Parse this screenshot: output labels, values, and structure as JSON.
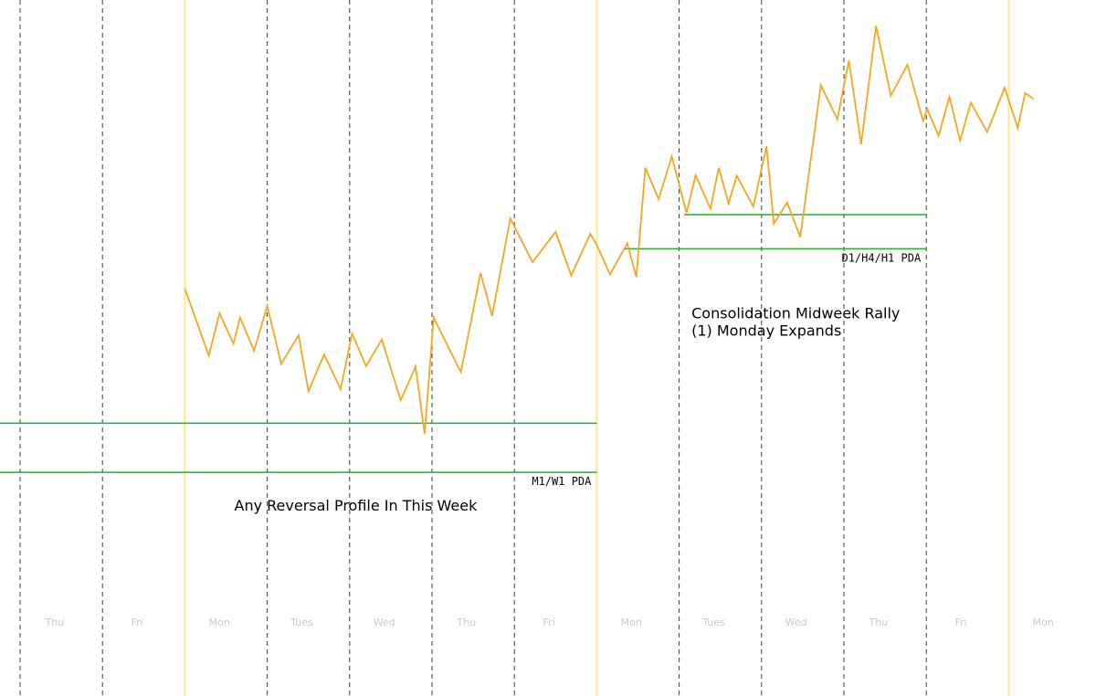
{
  "chart_data": {
    "type": "line",
    "title": "",
    "xlabel": "",
    "ylabel": "",
    "grid": false,
    "ylim": [
      0,
      100
    ],
    "xlim": [
      0,
      13
    ],
    "x_tick_labels": [
      "Thu",
      "Fri",
      "Mon",
      "Tues",
      "Wed",
      "Thu",
      "Fri",
      "Mon",
      "Tues",
      "Wed",
      "Thu",
      "Fri",
      "Mon"
    ],
    "day_separators": [
      0,
      1,
      2,
      3,
      4,
      5,
      6,
      7,
      8,
      9,
      10,
      11,
      12
    ],
    "week_separators": [
      2,
      7,
      12
    ],
    "series": [
      {
        "color": "#f5a623",
        "x": [
          2.0,
          2.29,
          2.42,
          2.59,
          2.67,
          2.84,
          3.0,
          3.17,
          3.38,
          3.5,
          3.69,
          3.89,
          4.03,
          4.2,
          4.39,
          4.62,
          4.8,
          4.91,
          5.02,
          5.2,
          5.35,
          5.59,
          5.73,
          5.95,
          6.22,
          6.5,
          6.69,
          6.92,
          7.0,
          7.16,
          7.37,
          7.48,
          7.59,
          7.75,
          7.91,
          8.09,
          8.2,
          8.38,
          8.48,
          8.6,
          8.7,
          8.9,
          9.06,
          9.15,
          9.31,
          9.47,
          9.72,
          9.92,
          10.06,
          10.21,
          10.39,
          10.57,
          10.77,
          10.96,
          11.01,
          11.15,
          11.28,
          11.41,
          11.54,
          11.74,
          11.95,
          12.11,
          12.2,
          12.3
        ],
        "y": [
          48.6,
          36.1,
          44.0,
          38.3,
          43.2,
          37.0,
          45.4,
          34.5,
          39.9,
          29.4,
          36.3,
          29.8,
          40.2,
          34.1,
          39.1,
          27.7,
          34.0,
          21.4,
          43.2,
          37.6,
          33.0,
          51.6,
          43.5,
          61.8,
          53.6,
          59.3,
          51.1,
          58.9,
          56.8,
          51.3,
          57.1,
          50.8,
          71.3,
          65.4,
          73.4,
          62.8,
          69.9,
          63.6,
          71.3,
          64.6,
          69.8,
          64.0,
          75.3,
          60.8,
          64.8,
          58.3,
          86.8,
          80.4,
          91.4,
          75.7,
          97.9,
          84.8,
          90.6,
          80.1,
          82.3,
          77.3,
          84.6,
          76.4,
          83.5,
          78.0,
          86.3,
          78.8,
          85.3,
          84.2
        ]
      }
    ],
    "horizontal_levels": [
      {
        "y": 23.4,
        "x_start": -0.25,
        "x_end": 7.0,
        "color": "#2eaa2e"
      },
      {
        "y": 14.2,
        "x_start": -0.25,
        "x_end": 7.0,
        "color": "#2eaa2e"
      },
      {
        "y": 62.5,
        "x_start": 8.06,
        "x_end": 11.0,
        "color": "#2eaa2e"
      },
      {
        "y": 56.1,
        "x_start": 7.33,
        "x_end": 11.0,
        "color": "#2eaa2e"
      }
    ],
    "level_labels": [
      {
        "text": "M1/W1 PDA",
        "x": 7.0,
        "y": 14.2
      },
      {
        "text": "D1/H4/H1 PDA",
        "x": 11.0,
        "y": 56.1
      }
    ],
    "annotations": [
      {
        "lines": [
          "Any Reversal Profile In This Week"
        ],
        "x": 2.6,
        "y": 7.0
      },
      {
        "lines": [
          "Consolidation Midweek Rally",
          "(1) Monday Expands"
        ],
        "x": 8.15,
        "y": 43.1
      }
    ]
  }
}
